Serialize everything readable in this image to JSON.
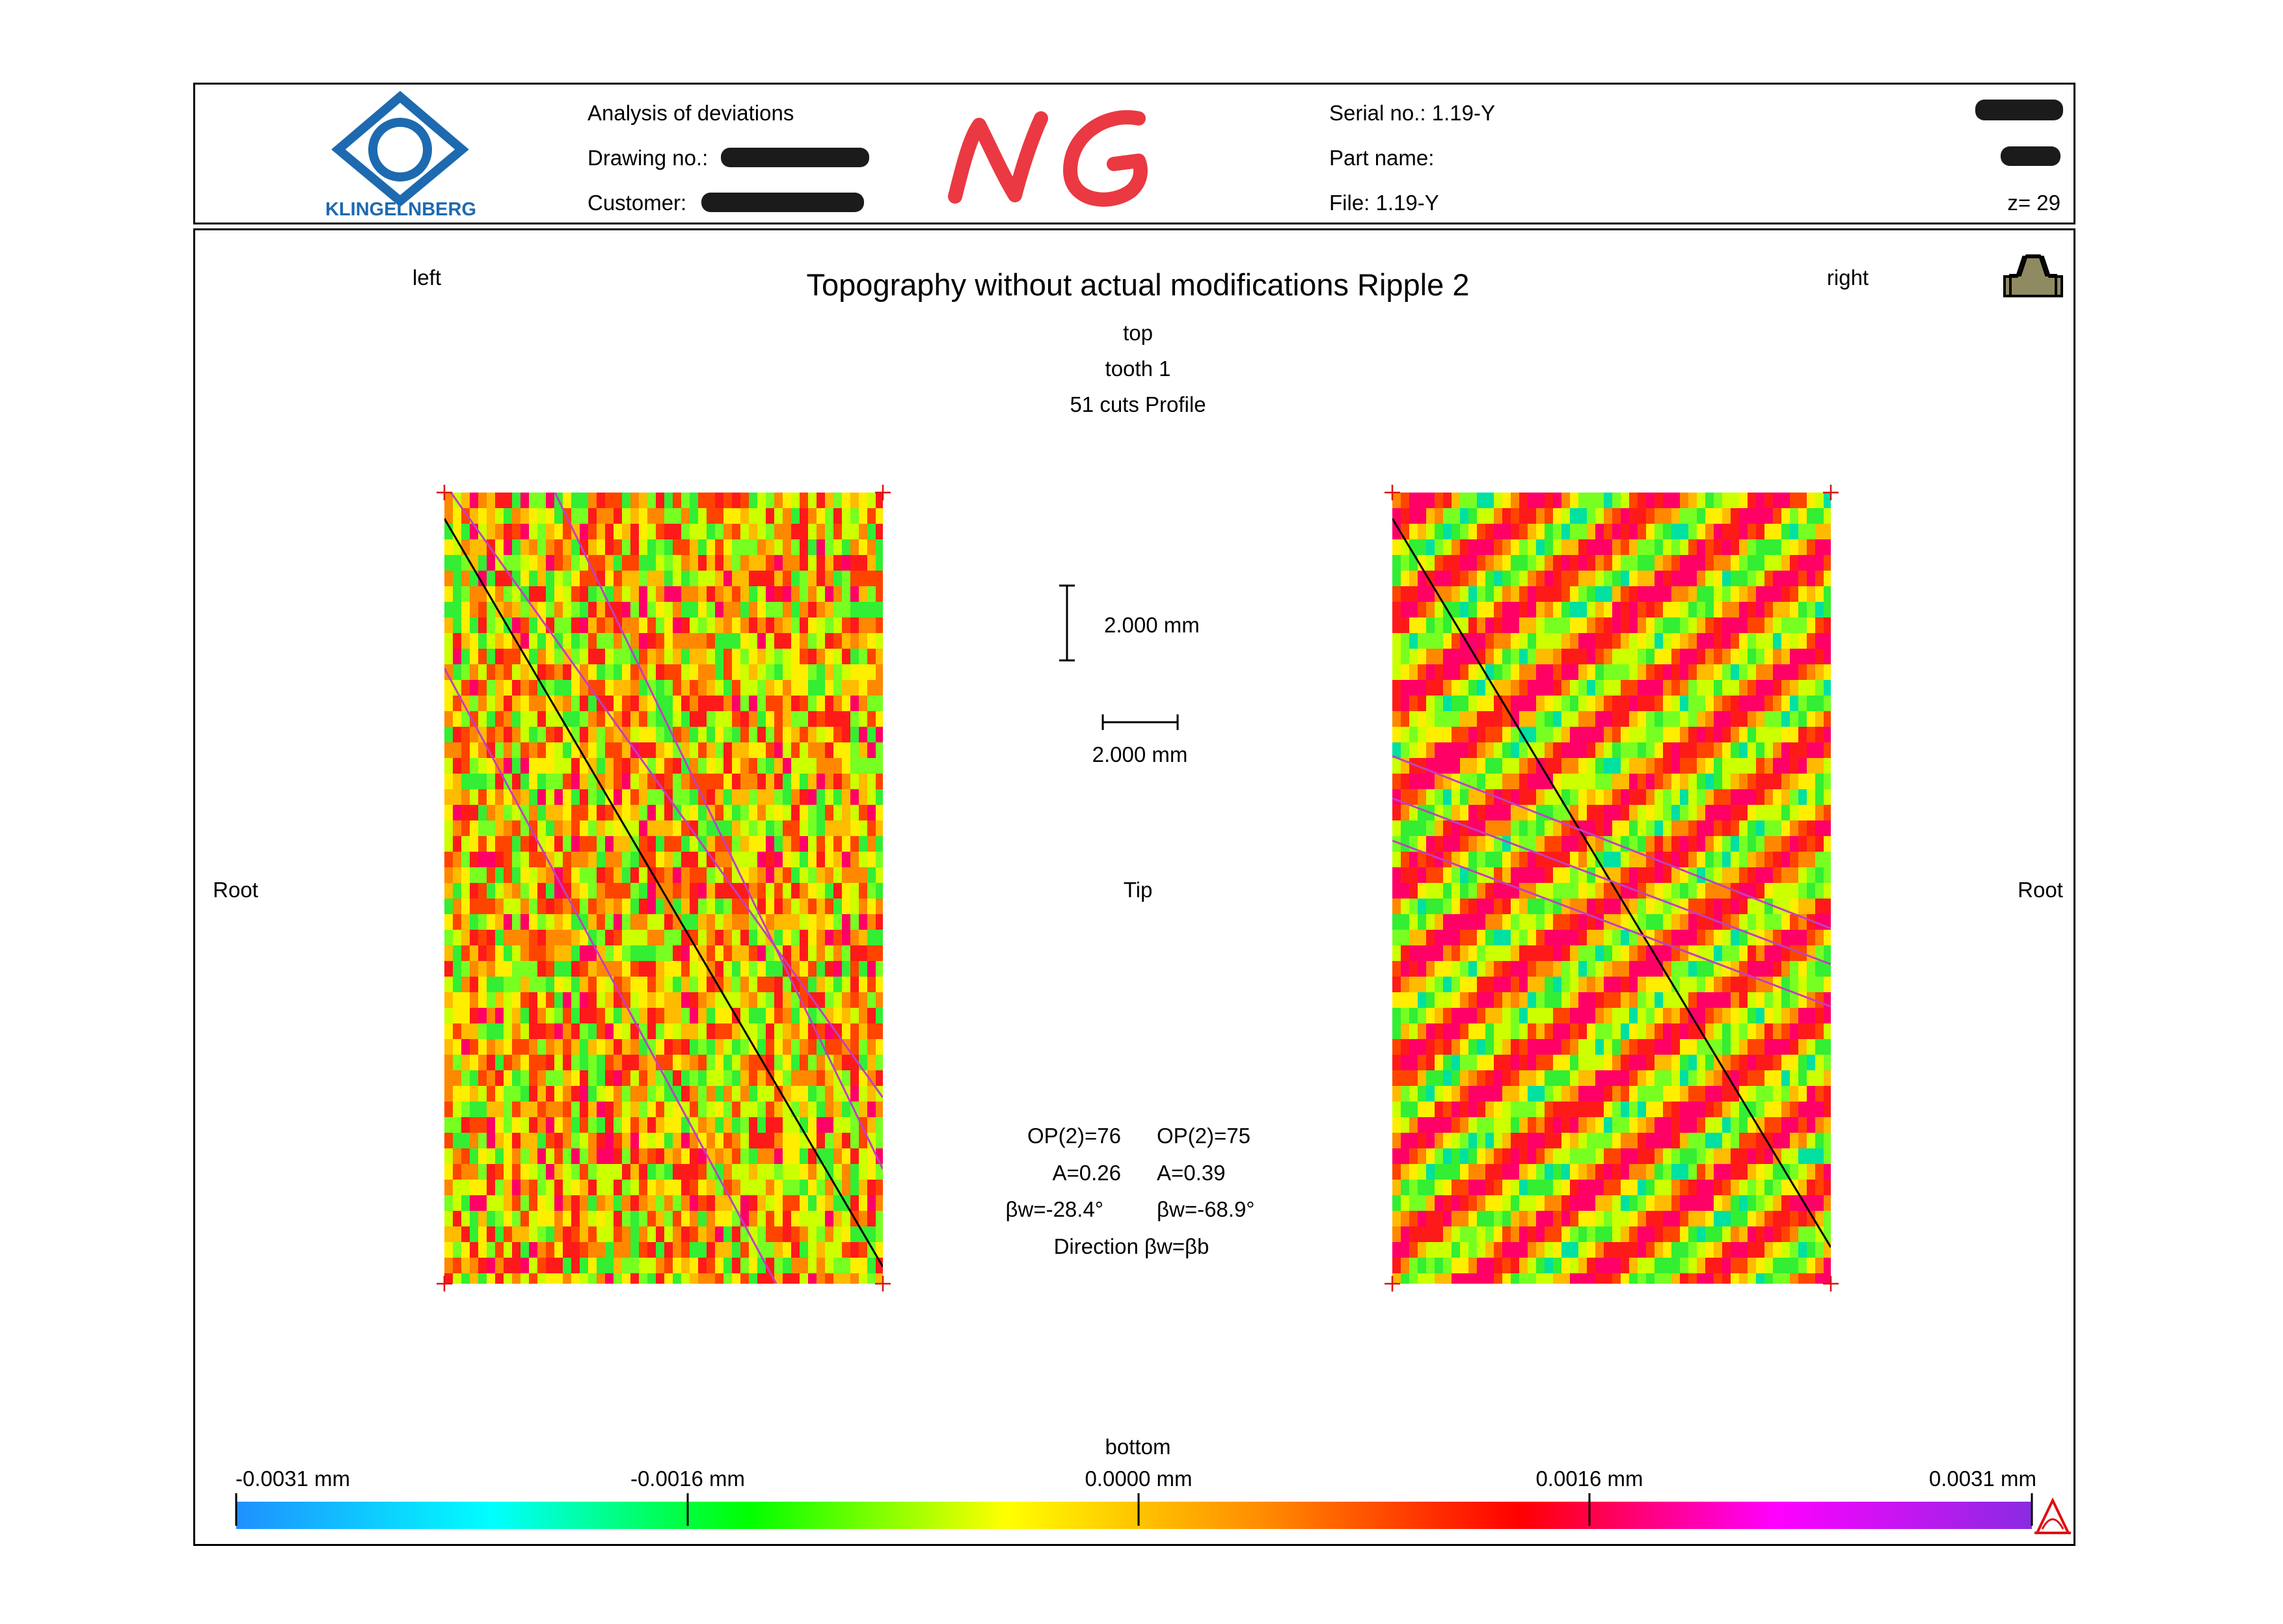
{
  "header": {
    "company": "KLINGELNBERG",
    "analysis": "Analysis of deviations",
    "drawing_label": "Drawing no.:",
    "customer_label": "Customer:",
    "stamp": "NG",
    "serial": "Serial no.: 1.19-Y",
    "part_label": "Part name:",
    "file": "File: 1.19-Y",
    "z": "z= 29"
  },
  "chart": {
    "title": "Topography without actual modifications Ripple 2",
    "left_label": "left",
    "right_label": "right",
    "top_label": "top",
    "tooth": "tooth 1",
    "cuts": "51 cuts Profile",
    "root_left": "Root",
    "tip": "Tip",
    "root_right": "Root",
    "bottom_label": "bottom",
    "scale_vertical": "2.000 mm",
    "scale_horizontal": "2.000 mm",
    "left_stats": {
      "op": "OP(2)=76",
      "a": "A=0.26",
      "bw": "βw=-28.4°"
    },
    "right_stats": {
      "op": "OP(2)=75",
      "a": "A=0.39",
      "bw": "βw=-68.9°"
    },
    "direction": "Direction βw=βb"
  },
  "colorbar": {
    "ticks": [
      "-0.0031 mm",
      "-0.0016 mm",
      "0.0000 mm",
      "0.0016 mm",
      "0.0031 mm"
    ],
    "stops": [
      "#1e90ff",
      "#00ffff",
      "#00ff00",
      "#ffff00",
      "#ff8c00",
      "#ff0000",
      "#ff00ff",
      "#8a2be2"
    ]
  }
}
